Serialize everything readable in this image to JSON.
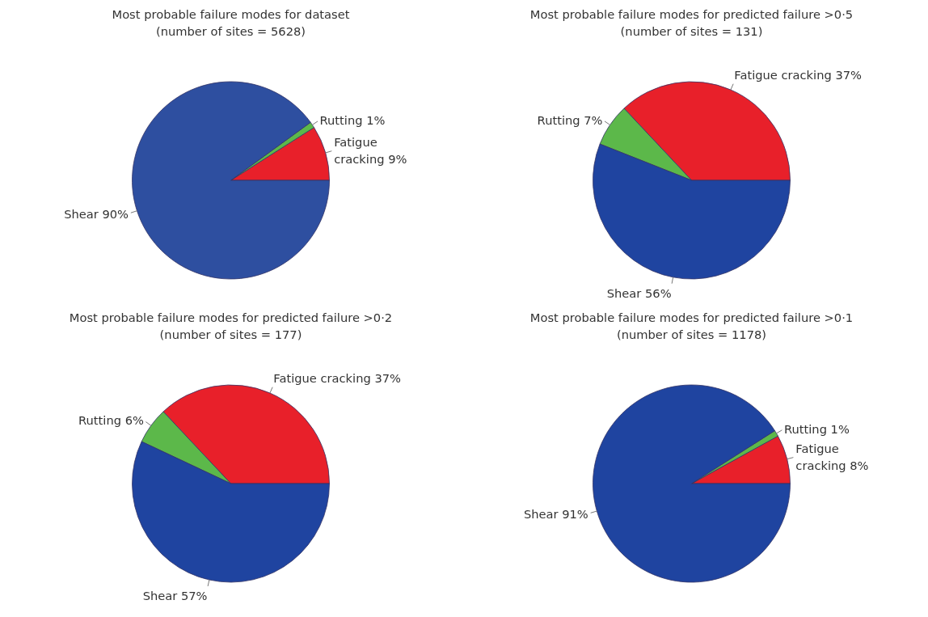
{
  "chart_data": [
    {
      "type": "pie",
      "title": "Most probable failure modes for dataset",
      "subtitle": "(number of sites = 5628)",
      "categories": [
        "Fatigue cracking",
        "Rutting",
        "Shear"
      ],
      "values": [
        9,
        1,
        90
      ],
      "colors": [
        "#e8202a",
        "#5cb84a",
        "#2e4fa0"
      ],
      "value_labels": [
        "9%",
        "1%",
        "90%"
      ]
    },
    {
      "type": "pie",
      "title": "Most probable failure modes for predicted failure >0·5",
      "subtitle": "(number of sites = 131)",
      "categories": [
        "Fatigue cracking",
        "Rutting",
        "Shear"
      ],
      "values": [
        37,
        7,
        56
      ],
      "colors": [
        "#e8202a",
        "#5cb84a",
        "#1f44a0"
      ],
      "value_labels": [
        "37%",
        "7%",
        "56%"
      ]
    },
    {
      "type": "pie",
      "title": "Most probable failure modes for predicted failure >0·2",
      "subtitle": "(number of sites = 177)",
      "categories": [
        "Fatigue cracking",
        "Rutting",
        "Shear"
      ],
      "values": [
        37,
        6,
        57
      ],
      "colors": [
        "#e8202a",
        "#5cb84a",
        "#1f44a0"
      ],
      "value_labels": [
        "37%",
        "6%",
        "57%"
      ]
    },
    {
      "type": "pie",
      "title": "Most probable failure modes for predicted failure >0·1",
      "subtitle": "(number of sites = 1178)",
      "categories": [
        "Fatigue cracking",
        "Rutting",
        "Shear"
      ],
      "values": [
        8,
        1,
        91
      ],
      "colors": [
        "#e8202a",
        "#5cb84a",
        "#1f44a0"
      ],
      "value_labels": [
        "8%",
        "1%",
        "91%"
      ]
    }
  ]
}
